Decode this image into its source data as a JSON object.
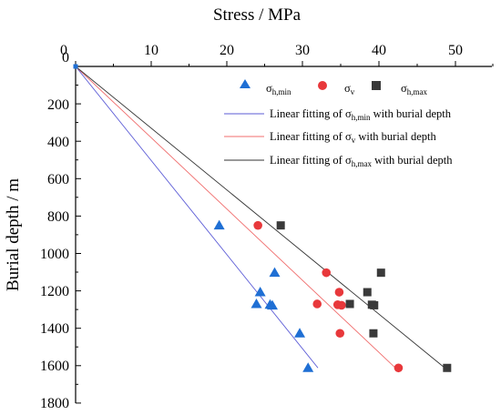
{
  "chart_data": {
    "type": "scatter",
    "xlabel": "Stress / MPa",
    "ylabel": "Burial depth / m",
    "xlim": [
      0,
      55
    ],
    "ylim": [
      0,
      1800
    ],
    "y_inverted": true,
    "x_axis_position": "top",
    "x_ticks": [
      "0",
      "10",
      "20",
      "30",
      "40",
      "50"
    ],
    "y_ticks": [
      "200",
      "400",
      "600",
      "800",
      "1000",
      "1200",
      "1400",
      "1600",
      "1800"
    ],
    "legend_position": "top-right",
    "series": [
      {
        "name": "σh,min",
        "name_base": "σ",
        "name_sub": "h,min",
        "marker": "triangle",
        "color": "#1f6fd4",
        "points": [
          [
            18.9,
            850
          ],
          [
            24.3,
            1207
          ],
          [
            23.8,
            1270
          ],
          [
            25.6,
            1274
          ],
          [
            25.9,
            1278
          ],
          [
            26.2,
            1103
          ],
          [
            29.5,
            1427
          ],
          [
            30.6,
            1612
          ]
        ]
      },
      {
        "name": "σv",
        "name_base": "σ",
        "name_sub": "v",
        "marker": "circle",
        "color": "#e8383b",
        "points": [
          [
            24.0,
            850
          ],
          [
            33.0,
            1103
          ],
          [
            31.8,
            1270
          ],
          [
            34.7,
            1207
          ],
          [
            34.5,
            1274
          ],
          [
            35.0,
            1277
          ],
          [
            34.8,
            1427
          ],
          [
            42.5,
            1612
          ]
        ]
      },
      {
        "name": "σh,max",
        "name_base": "σ",
        "name_sub": "h,max",
        "marker": "square",
        "color": "#3a3a3a",
        "points": [
          [
            27.0,
            850
          ],
          [
            40.2,
            1103
          ],
          [
            38.4,
            1207
          ],
          [
            36.1,
            1270
          ],
          [
            39.0,
            1274
          ],
          [
            39.3,
            1277
          ],
          [
            39.2,
            1427
          ],
          [
            48.9,
            1612
          ]
        ]
      }
    ],
    "fits": [
      {
        "name": "Linear fitting of σh,min with burial depth",
        "label_prefix": "Linear fitting of σ",
        "label_sub": "h,min",
        "label_suffix": " with burial depth",
        "color": "#5b5bd6",
        "from": [
          0,
          0
        ],
        "to": [
          31.9,
          1612
        ]
      },
      {
        "name": "Linear fitting of σv with burial depth",
        "label_prefix": "Linear fitting of σ",
        "label_sub": "v",
        "label_suffix": " with burial depth",
        "color": "#f06d6d",
        "from": [
          0,
          0
        ],
        "to": [
          42.1,
          1612
        ]
      },
      {
        "name": "Linear fitting of σh,max with burial depth",
        "label_prefix": "Linear fitting of σ",
        "label_sub": "h,max",
        "label_suffix": " with burial depth",
        "color": "#333333",
        "from": [
          0,
          0
        ],
        "to": [
          48.6,
          1612
        ]
      }
    ]
  }
}
